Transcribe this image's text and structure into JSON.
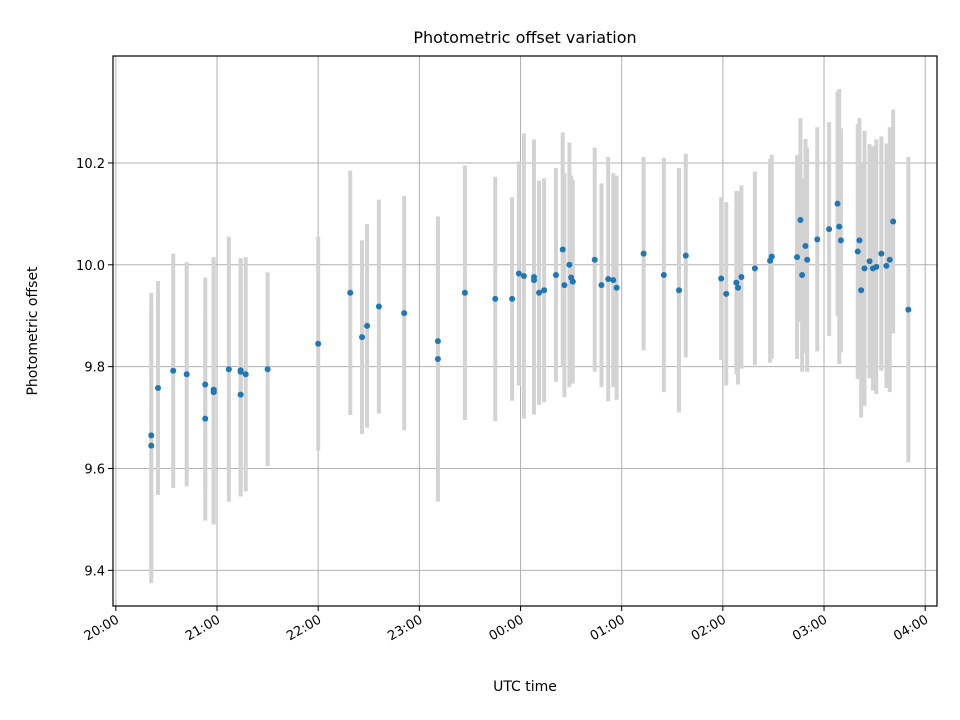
{
  "chart_data": {
    "type": "scatter",
    "title": "Photometric offset variation",
    "xlabel": "UTC time",
    "ylabel": "Photometric offset",
    "x_axis_type": "time",
    "x_range": [
      "20:00",
      "04:00"
    ],
    "ylim": [
      9.33,
      10.41
    ],
    "grid": true,
    "x_ticks": [
      "20:00",
      "21:00",
      "22:00",
      "23:00",
      "00:00",
      "01:00",
      "02:00",
      "03:00",
      "04:00"
    ],
    "y_ticks": [
      "9.4",
      "9.6",
      "9.8",
      "10.0",
      "10.2"
    ],
    "colors": {
      "points": "#1f77b4",
      "error_bars": "#d3d3d3",
      "grid": "#b0b0b0"
    },
    "series": [
      {
        "x": [
          "20:21",
          "20:21",
          "20:25",
          "20:34",
          "20:42",
          "20:53",
          "20:53",
          "20:58",
          "20:58",
          "21:07",
          "21:14",
          "21:14",
          "21:14",
          "21:17",
          "21:30",
          "22:00",
          "22:19",
          "22:26",
          "22:29",
          "22:36",
          "22:51",
          "23:11",
          "23:11",
          "23:27",
          "23:45",
          "23:55",
          "23:59",
          "00:02",
          "00:08",
          "00:08",
          "00:11",
          "00:14",
          "00:21",
          "00:25",
          "00:26",
          "00:29",
          "00:30",
          "00:31",
          "00:44",
          "00:48",
          "00:52",
          "00:55",
          "00:57",
          "01:13",
          "01:25",
          "01:34",
          "01:38",
          "01:59",
          "02:02",
          "02:08",
          "02:09",
          "02:11",
          "02:19",
          "02:28",
          "02:29",
          "02:44",
          "02:46",
          "02:47",
          "02:49",
          "02:50",
          "02:56",
          "03:03",
          "03:08",
          "03:09",
          "03:10",
          "03:20",
          "03:21",
          "03:22",
          "03:24",
          "03:27",
          "03:29",
          "03:31",
          "03:34",
          "03:37",
          "03:39",
          "03:41",
          "03:50"
        ],
        "y": [
          9.665,
          9.645,
          9.758,
          9.792,
          9.785,
          9.765,
          9.698,
          9.755,
          9.75,
          9.795,
          9.745,
          9.79,
          9.793,
          9.785,
          9.795,
          9.845,
          9.945,
          9.858,
          9.88,
          9.918,
          9.905,
          9.85,
          9.815,
          9.945,
          9.933,
          9.933,
          9.983,
          9.978,
          9.976,
          9.97,
          9.945,
          9.95,
          9.98,
          10.03,
          9.96,
          10.0,
          9.975,
          9.967,
          10.01,
          9.96,
          9.972,
          9.97,
          9.955,
          10.022,
          9.98,
          9.95,
          10.018,
          9.973,
          9.943,
          9.965,
          9.955,
          9.976,
          9.993,
          10.008,
          10.016,
          10.015,
          10.088,
          9.98,
          10.037,
          10.01,
          10.05,
          10.07,
          10.12,
          10.075,
          10.048,
          10.026,
          10.048,
          9.95,
          9.993,
          10.007,
          9.993,
          9.996,
          10.022,
          9.998,
          10.01,
          10.085,
          9.912
        ],
        "yerr": [
          0.28,
          0.27,
          0.21,
          0.23,
          0.22,
          0.21,
          0.2,
          0.26,
          0.26,
          0.26,
          0.2,
          0.22,
          0.22,
          0.23,
          0.19,
          0.21,
          0.24,
          0.19,
          0.2,
          0.21,
          0.23,
          0.23,
          0.28,
          0.25,
          0.24,
          0.2,
          0.22,
          0.28,
          0.27,
          0.2,
          0.22,
          0.22,
          0.21,
          0.23,
          0.22,
          0.24,
          0.2,
          0.2,
          0.22,
          0.2,
          0.24,
          0.21,
          0.22,
          0.19,
          0.23,
          0.24,
          0.2,
          0.16,
          0.18,
          0.18,
          0.19,
          0.18,
          0.19,
          0.2,
          0.2,
          0.2,
          0.2,
          0.19,
          0.21,
          0.22,
          0.22,
          0.21,
          0.22,
          0.27,
          0.22,
          0.25,
          0.24,
          0.25,
          0.27,
          0.23,
          0.24,
          0.25,
          0.23,
          0.24,
          0.26,
          0.22,
          0.3
        ]
      }
    ]
  }
}
